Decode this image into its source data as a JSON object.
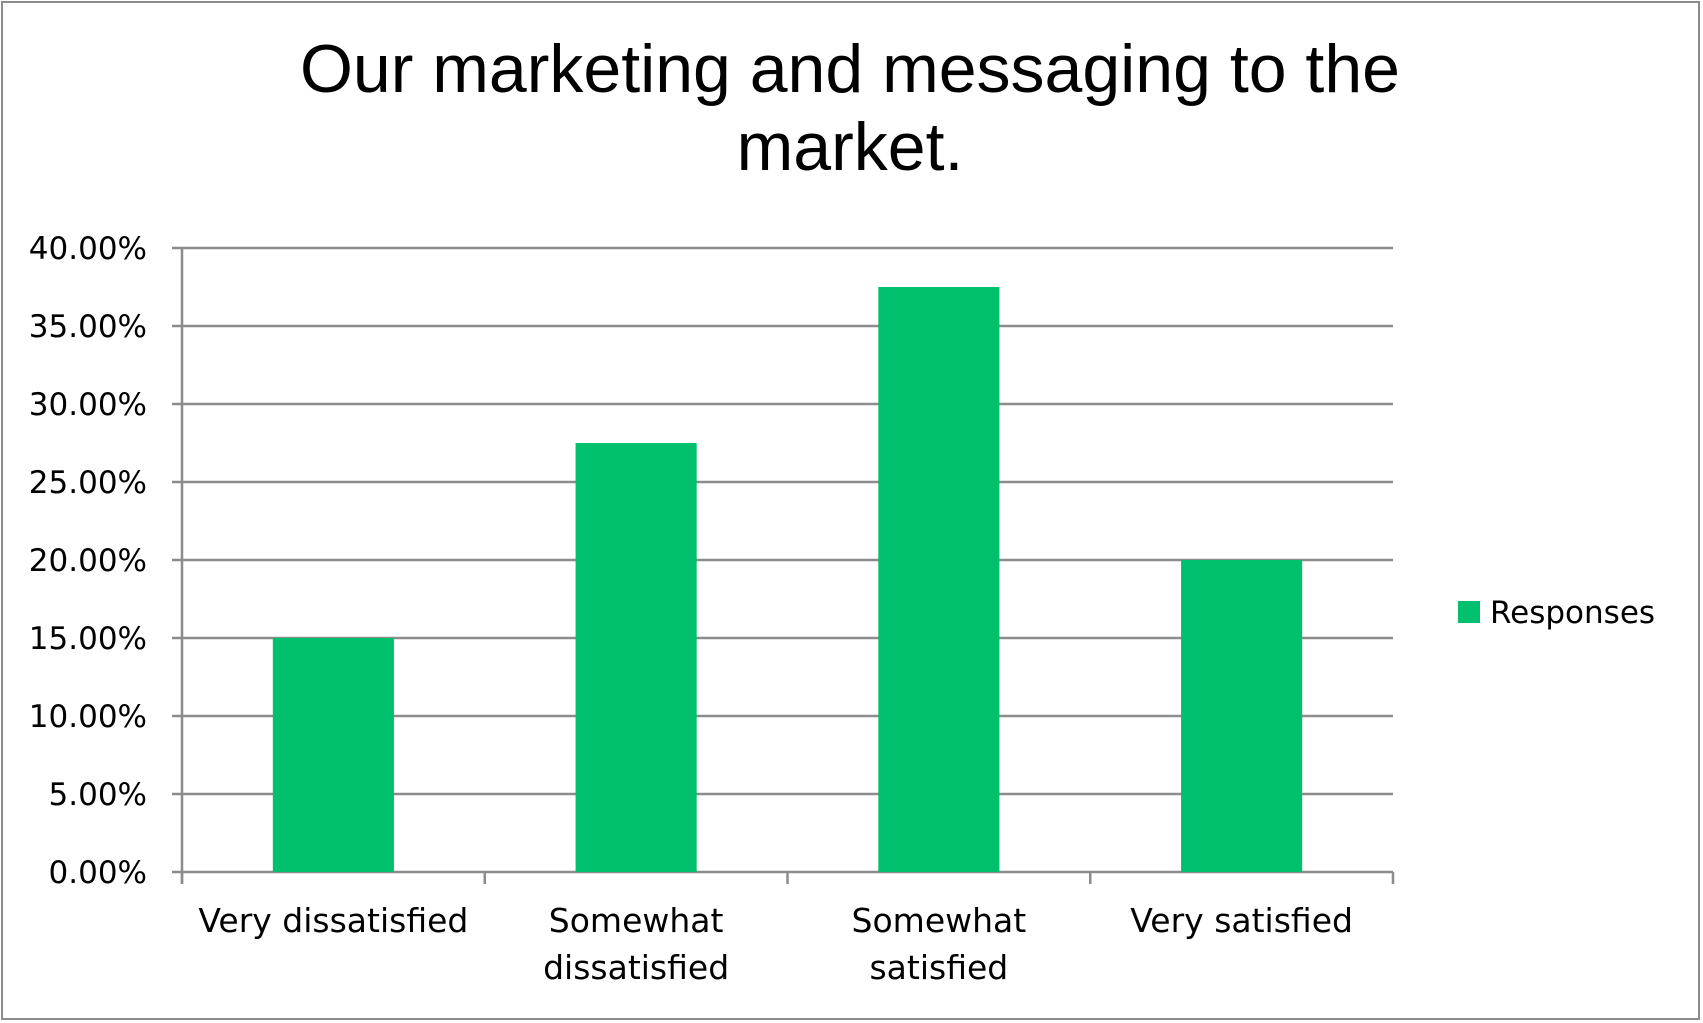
{
  "chart_data": {
    "type": "bar",
    "title": "Our marketing and messaging to the market.",
    "categories": [
      "Very dissatisfied",
      "Somewhat dissatisfied",
      "Somewhat satisfied",
      "Very satisfied"
    ],
    "category_lines": [
      [
        "Very dissatisfied"
      ],
      [
        "Somewhat",
        "dissatisfied"
      ],
      [
        "Somewhat",
        "satisfied"
      ],
      [
        "Very satisfied"
      ]
    ],
    "series": [
      {
        "name": "Responses",
        "values": [
          0.15,
          0.275,
          0.375,
          0.2
        ],
        "color": "#00c06e"
      }
    ],
    "xlabel": "",
    "ylabel": "",
    "ylim": [
      0,
      0.4
    ],
    "y_ticks": [
      0,
      0.05,
      0.1,
      0.15,
      0.2,
      0.25,
      0.3,
      0.35,
      0.4
    ],
    "y_tick_labels": [
      "0.00%",
      "5.00%",
      "10.00%",
      "15.00%",
      "20.00%",
      "25.00%",
      "30.00%",
      "35.00%",
      "40.00%"
    ],
    "grid": true,
    "legend": "right",
    "gridline_color": "#8c8c8c"
  }
}
